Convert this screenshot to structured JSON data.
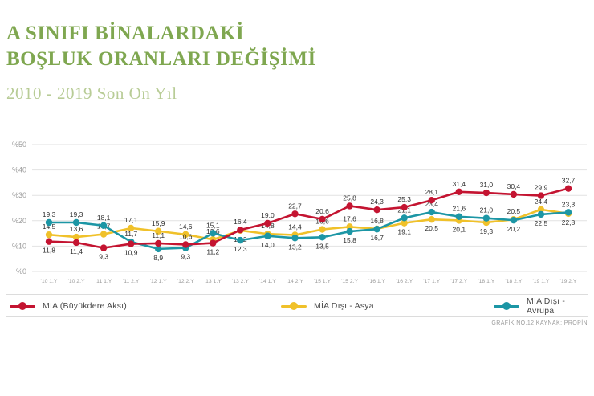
{
  "header": {
    "title_line1": "A SINIFI BİNALARDAKİ",
    "title_line2": "BOŞLUK ORANLARI DEĞİŞİMİ",
    "subtitle": "2010 - 2019 Son On Yıl"
  },
  "footer": {
    "caption": "GRAFİK NO.12 KAYNAK: PROPİN"
  },
  "colors": {
    "red": "#c41431",
    "yellow": "#f0c12a",
    "teal": "#1c96a5",
    "title_green": "#7fa750",
    "subtitle_green": "#b8cc96",
    "grid": "#e2e2e2",
    "axis_text": "#9b9b9b",
    "point_label_text": "#2e2e2e"
  },
  "chart_data": {
    "type": "line",
    "title": "A Sınıfı Binalardaki Boşluk Oranları Değişimi",
    "subtitle": "2010 - 2019 Son On Yıl",
    "categories": [
      "'10 1.Y",
      "'10 2.Y",
      "'11 1.Y",
      "'11 2.Y",
      "'12 1.Y",
      "'12 2.Y",
      "'13 1.Y",
      "'13 2.Y",
      "'14 1.Y",
      "'14 2.Y",
      "'15 1.Y",
      "'15 2.Y",
      "'16 1.Y",
      "'16 2.Y",
      "'17 1.Y",
      "'17 2.Y",
      "'18 1.Y",
      "'18 2.Y",
      "'19 1.Y",
      "'19 2.Y"
    ],
    "y_ticks": [
      0,
      10,
      20,
      30,
      40,
      50
    ],
    "y_tick_prefix": "%",
    "ylim": [
      0,
      55
    ],
    "grid": true,
    "legend_position": "bottom",
    "decimal_separator": ",",
    "series": [
      {
        "name": "MİA (Büyükdere Aksı)",
        "color_key": "red",
        "values": [
          11.8,
          11.4,
          9.3,
          10.9,
          11.1,
          10.6,
          11.2,
          16.4,
          19.0,
          22.7,
          20.6,
          25.8,
          24.3,
          25.3,
          28.1,
          31.4,
          31.0,
          30.4,
          29.9,
          32.7
        ],
        "label_pos": [
          "b",
          "b",
          "b",
          "b",
          "a",
          "a",
          "b",
          "a",
          "a",
          "a",
          "a",
          "a",
          "a",
          "a",
          "a",
          "a",
          "a",
          "a",
          "a",
          "a"
        ]
      },
      {
        "name": "MİA Dışı - Asya",
        "color_key": "yellow",
        "values": [
          14.5,
          13.6,
          14.7,
          17.1,
          15.9,
          14.6,
          12.6,
          16.2,
          14.8,
          14.4,
          16.6,
          17.6,
          16.8,
          19.1,
          20.5,
          20.1,
          19.3,
          20.5,
          24.4,
          22.8
        ],
        "label_pos": [
          "a",
          "a",
          "a",
          "a",
          "a",
          "a",
          "a",
          "b",
          "a",
          "a",
          "a",
          "a",
          "a",
          "b",
          "b",
          "b",
          "b",
          "a",
          "a",
          "b"
        ]
      },
      {
        "name": "MİA Dışı - Avrupa",
        "color_key": "teal",
        "values": [
          19.3,
          19.3,
          18.1,
          11.7,
          8.9,
          9.3,
          15.1,
          12.3,
          14.0,
          13.2,
          13.5,
          15.8,
          16.7,
          21.1,
          23.4,
          21.6,
          21.0,
          20.2,
          22.5,
          23.3
        ],
        "label_pos": [
          "a",
          "a",
          "a",
          "a",
          "b",
          "b",
          "a",
          "b",
          "b",
          "b",
          "b",
          "b",
          "b",
          "a",
          "a",
          "a",
          "a",
          "b",
          "b",
          "a"
        ]
      }
    ]
  }
}
